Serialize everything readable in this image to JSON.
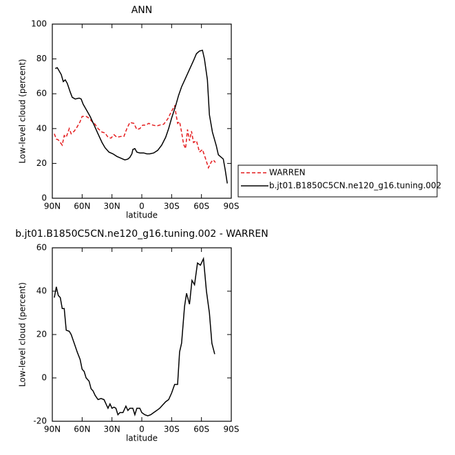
{
  "chart_data": [
    {
      "type": "line",
      "title": "ANN",
      "xlabel": "latitude",
      "ylabel": "Low-level cloud (percent)",
      "xlim": [
        90,
        -90
      ],
      "ylim": [
        0,
        100
      ],
      "xticks": [
        {
          "value": 90,
          "label": "90N"
        },
        {
          "value": 60,
          "label": "60N"
        },
        {
          "value": 30,
          "label": "30N"
        },
        0,
        {
          "value": -30,
          "label": "30S"
        },
        {
          "value": -60,
          "label": "60S"
        },
        {
          "value": -90,
          "label": "90S"
        }
      ],
      "yticks": [
        0,
        20,
        40,
        60,
        80,
        100
      ],
      "legend": "right",
      "series": [
        {
          "name": "WARREN",
          "color": "#e41a1c",
          "linestyle": "dashed",
          "x": [
            88,
            86,
            84,
            82,
            80,
            78,
            76,
            73,
            71,
            68,
            65,
            62,
            60,
            56,
            53,
            50,
            47,
            44,
            40,
            37,
            34,
            31,
            28,
            25,
            21,
            18,
            15,
            12,
            8,
            5,
            2,
            -1,
            -4,
            -7,
            -11,
            -15,
            -18,
            -22,
            -26,
            -30,
            -33,
            -36,
            -38,
            -40,
            -42,
            -44,
            -46,
            -48,
            -50,
            -52,
            -55,
            -58,
            -61,
            -64,
            -67,
            -70,
            -72,
            -74
          ],
          "values": [
            37,
            34,
            33.5,
            32,
            30.5,
            36,
            35,
            40,
            37,
            38.5,
            41,
            44,
            47,
            47,
            46,
            44,
            42.5,
            40,
            38,
            37.5,
            35,
            34.5,
            36.5,
            35,
            35.5,
            35.5,
            40,
            43.5,
            43,
            39.5,
            40,
            42,
            42,
            43,
            42,
            41.5,
            42,
            42.5,
            45.5,
            50,
            53,
            43,
            44,
            38,
            31,
            28.5,
            39.5,
            33,
            38.5,
            32,
            33,
            26.5,
            28,
            23,
            17.5,
            21,
            22,
            20.5
          ]
        },
        {
          "name": "b.jt01.B1850C5CN.ne120_g16.tuning.002",
          "color": "#000000",
          "linestyle": "solid",
          "x": [
            87,
            85,
            81,
            79,
            77,
            75,
            72,
            70,
            67,
            63,
            61,
            59,
            55,
            52,
            48,
            44,
            40,
            37,
            33,
            29,
            25,
            21,
            17,
            14,
            12,
            10,
            9,
            7,
            5,
            2,
            -2,
            -5,
            -8,
            -12,
            -16,
            -20,
            -24,
            -27,
            -30,
            -34,
            -37,
            -40,
            -44,
            -48,
            -52,
            -55,
            -58,
            -61,
            -63,
            -66,
            -68,
            -71,
            -75,
            -77,
            -82,
            -84,
            -86
          ],
          "values": [
            74.5,
            75,
            71,
            67,
            68,
            66,
            61,
            58,
            57,
            57.5,
            57,
            54,
            50,
            47,
            42,
            37,
            32,
            29,
            26.5,
            25.5,
            24,
            23,
            22,
            22.5,
            23.5,
            25.5,
            28,
            28.5,
            26.5,
            26,
            26,
            25.5,
            25.5,
            26,
            27.5,
            30.5,
            35,
            40,
            46,
            53,
            59,
            64,
            69,
            74,
            79,
            83,
            84.5,
            85,
            80,
            68,
            48,
            38,
            30,
            25,
            22.5,
            16,
            8.5
          ]
        }
      ]
    },
    {
      "type": "line",
      "title": "b.jt01.B1850C5CN.ne120_g16.tuning.002 - WARREN",
      "xlabel": "latitude",
      "ylabel": "Low-level cloud (percent)",
      "xlim": [
        90,
        -90
      ],
      "ylim": [
        -20,
        60
      ],
      "xticks": [
        {
          "value": 90,
          "label": "90N"
        },
        {
          "value": 60,
          "label": "60N"
        },
        {
          "value": 30,
          "label": "30N"
        },
        0,
        {
          "value": -30,
          "label": "30S"
        },
        {
          "value": -60,
          "label": "60S"
        },
        {
          "value": -90,
          "label": "90S"
        }
      ],
      "yticks": [
        -20,
        0,
        20,
        40,
        60
      ],
      "series": [
        {
          "color": "#000000",
          "linestyle": "solid",
          "x": [
            88,
            86,
            84,
            82,
            80,
            78,
            76,
            73,
            71,
            68,
            65,
            62,
            60,
            58,
            56,
            53,
            51,
            49,
            47,
            44,
            41,
            38,
            36,
            34,
            32,
            30,
            28,
            26,
            24,
            22,
            19,
            16,
            14,
            12,
            9,
            7,
            5,
            2,
            0,
            -3,
            -6,
            -9,
            -12,
            -15,
            -18,
            -21,
            -24,
            -27,
            -30,
            -33,
            -36,
            -38,
            -40,
            -43,
            -45,
            -48,
            -50.5,
            -53,
            -56,
            -59,
            -62,
            -65,
            -68,
            -70.5,
            -73.3
          ],
          "values": [
            37,
            42,
            38,
            37,
            32,
            32,
            22,
            21.5,
            20,
            16,
            12,
            8.5,
            4,
            3,
            0,
            -1.5,
            -5,
            -6,
            -8,
            -10,
            -9.5,
            -10,
            -12,
            -14,
            -12,
            -14,
            -13.5,
            -14,
            -17,
            -16,
            -16,
            -13,
            -15,
            -14,
            -14,
            -17,
            -14,
            -14,
            -16,
            -17,
            -17.5,
            -17,
            -16,
            -15,
            -14,
            -12.5,
            -11,
            -10,
            -7,
            -3,
            -3,
            12,
            16,
            33,
            39,
            34,
            45,
            43,
            53,
            52,
            55,
            40,
            30,
            16,
            11
          ]
        }
      ]
    }
  ]
}
